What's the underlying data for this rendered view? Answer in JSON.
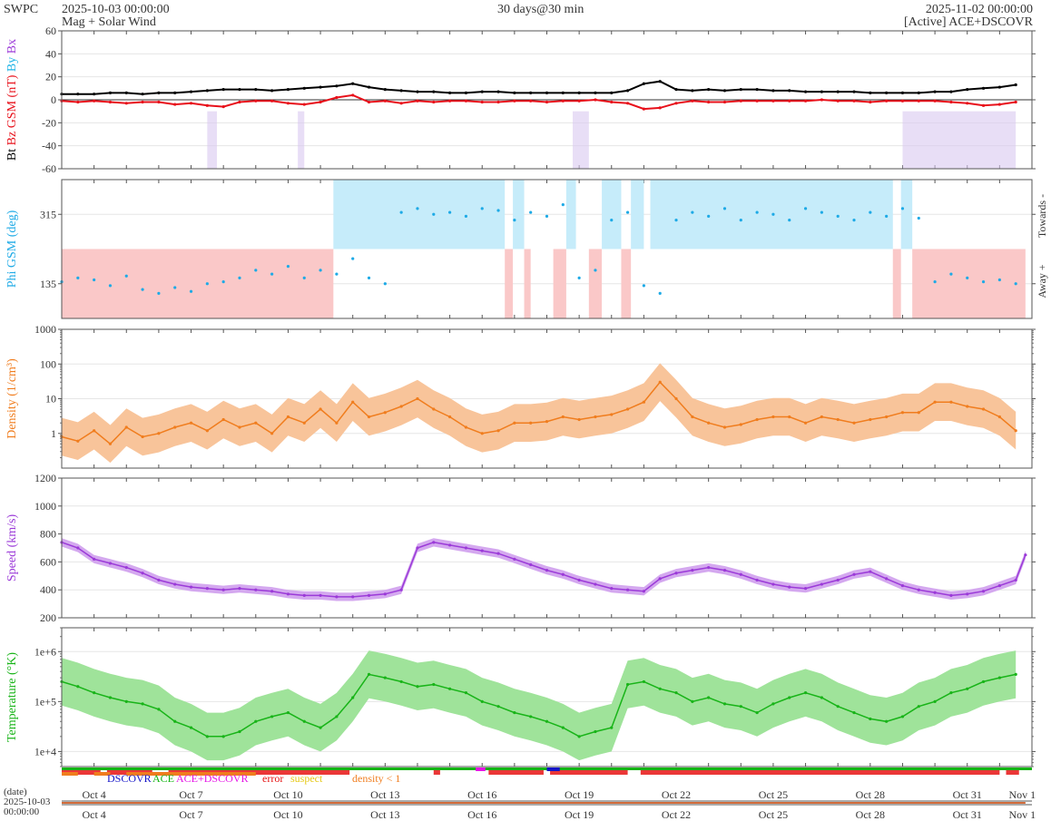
{
  "header": {
    "org": "SWPC",
    "start_time": "2025-10-03 00:00:00",
    "product": "Mag + Solar Wind",
    "span": "30 days@30 min",
    "end_time": "2025-11-02 00:00:00",
    "source": "[Active] ACE+DSCOVR"
  },
  "colors": {
    "bt": "#000000",
    "bz": "#e8101a",
    "by": "#1eb4e6",
    "phi": "#1eaae6",
    "phi_towards_band": "#c6ecfa",
    "phi_away_band": "#fac8c8",
    "density": "#f07d1e",
    "density_band": "#f8c49a",
    "speed": "#9b3ad8",
    "speed_band": "#d4a8ef",
    "temperature": "#18b418",
    "temperature_band": "#9fe39a",
    "dscovr": "#1414c8",
    "ace": "#14b414",
    "acedscovr": "#e614e6",
    "error": "#e61414",
    "suspect": "#e6c814",
    "density_flag": "#f07d1e"
  },
  "time_axis": {
    "ticks": [
      "Oct 4",
      "Oct 7",
      "Oct 10",
      "Oct 13",
      "Oct 16",
      "Oct 19",
      "Oct 22",
      "Oct 25",
      "Oct 28",
      "Oct 31",
      "Nov 1"
    ],
    "date_label": "(date)",
    "date_value_line1": "2025-10-03",
    "date_value_line2": "00:00:00"
  },
  "flags": {
    "legend": [
      {
        "key": "dscovr",
        "label": "DSCOVR"
      },
      {
        "key": "ace",
        "label": "ACE"
      },
      {
        "key": "acedscovr",
        "label": "ACE+DSCOVR"
      },
      {
        "key": "error",
        "label": "error"
      },
      {
        "key": "suspect",
        "label": "suspect"
      },
      {
        "key": "density_flag",
        "label": "density < 1"
      }
    ]
  },
  "chart_data": [
    {
      "type": "line",
      "name": "mag",
      "ylabel_parts": [
        {
          "text": "Bt",
          "color": "bt"
        },
        {
          "text": "Bz GSM (nT)",
          "color": "bz"
        },
        {
          "text": "By",
          "color": "by"
        },
        {
          "text": "Bx",
          "color": "speed"
        }
      ],
      "ylim": [
        -60,
        60
      ],
      "yticks": [
        60,
        40,
        20,
        0,
        -20,
        -40,
        -60
      ],
      "x_days": [
        0,
        0.5,
        1,
        1.5,
        2,
        2.5,
        3,
        3.5,
        4,
        4.5,
        5,
        5.5,
        6,
        6.5,
        7,
        7.5,
        8,
        8.5,
        9,
        9.5,
        10,
        10.5,
        11,
        11.5,
        12,
        12.5,
        13,
        13.5,
        14,
        14.5,
        15,
        15.5,
        16,
        16.5,
        17,
        17.5,
        18,
        18.5,
        19,
        19.5,
        20,
        20.5,
        21,
        21.5,
        22,
        22.5,
        23,
        23.5,
        24,
        24.5,
        25,
        25.5,
        26,
        26.5,
        27,
        27.5,
        28,
        28.5,
        29,
        29.5
      ],
      "series": [
        {
          "name": "Bt",
          "color": "bt",
          "values": [
            5,
            5,
            5,
            6,
            6,
            5,
            6,
            6,
            7,
            8,
            9,
            9,
            9,
            8,
            9,
            10,
            11,
            12,
            14,
            11,
            9,
            8,
            7,
            7,
            6,
            6,
            7,
            7,
            6,
            6,
            6,
            6,
            6,
            6,
            6,
            8,
            14,
            16,
            9,
            8,
            9,
            8,
            9,
            9,
            8,
            8,
            7,
            7,
            7,
            7,
            6,
            6,
            6,
            6,
            7,
            7,
            9,
            10,
            11,
            13
          ]
        },
        {
          "name": "Bz",
          "color": "bz",
          "values": [
            -1,
            -2,
            -1,
            -2,
            -3,
            -2,
            -2,
            -4,
            -3,
            -5,
            -6,
            -2,
            -1,
            -1,
            -3,
            -4,
            -2,
            2,
            4,
            -2,
            -1,
            -3,
            -1,
            -2,
            -1,
            -1,
            -2,
            -2,
            -1,
            -1,
            -2,
            -1,
            -1,
            0,
            -2,
            -3,
            -8,
            -7,
            -3,
            -1,
            -2,
            -2,
            -1,
            -1,
            -1,
            -1,
            -1,
            0,
            -1,
            -1,
            -2,
            -1,
            -1,
            -1,
            -1,
            -2,
            -3,
            -5,
            -4,
            -2
          ]
        }
      ],
      "bx_by_spans": [
        [
          4.5,
          4.8
        ],
        [
          7.3,
          7.5
        ],
        [
          15.8,
          16.3
        ],
        [
          26.0,
          29.5
        ]
      ]
    },
    {
      "type": "scatter",
      "name": "phi",
      "ylabel": "Phi GSM (deg)",
      "ylim": [
        45,
        405
      ],
      "yticks": [
        315,
        135
      ],
      "right_labels": [
        "Towards -",
        "Away +"
      ],
      "towards_band": [
        225,
        405
      ],
      "away_band": [
        45,
        225
      ],
      "x_days": [
        0,
        0.5,
        1,
        1.5,
        2,
        2.5,
        3,
        3.5,
        4,
        4.5,
        5,
        5.5,
        6,
        6.5,
        7,
        7.5,
        8,
        8.5,
        9,
        9.5,
        10,
        10.5,
        11,
        11.5,
        12,
        12.5,
        13,
        13.5,
        14,
        14.5,
        15,
        15.5,
        16,
        16.5,
        17,
        17.5,
        18,
        18.5,
        19,
        19.5,
        20,
        20.5,
        21,
        21.5,
        22,
        22.5,
        23,
        23.5,
        24,
        24.5,
        25,
        25.5,
        26,
        26.5,
        27,
        27.5,
        28,
        28.5,
        29,
        29.5
      ],
      "values": [
        140,
        150,
        145,
        130,
        155,
        120,
        110,
        125,
        115,
        135,
        140,
        150,
        170,
        160,
        180,
        150,
        170,
        160,
        200,
        150,
        135,
        320,
        330,
        315,
        320,
        310,
        330,
        325,
        300,
        320,
        310,
        340,
        150,
        170,
        300,
        320,
        130,
        110,
        300,
        320,
        310,
        330,
        300,
        320,
        315,
        300,
        330,
        320,
        310,
        300,
        320,
        310,
        330,
        305,
        140,
        160,
        150,
        140,
        145,
        135
      ],
      "towards_spans": [
        [
          8.4,
          13.7
        ],
        [
          13.95,
          14.3
        ],
        [
          15.6,
          15.9
        ],
        [
          16.7,
          17.3
        ],
        [
          17.6,
          18.0
        ],
        [
          18.2,
          25.7
        ],
        [
          25.95,
          26.3
        ]
      ],
      "away_spans": [
        [
          0,
          8.4
        ],
        [
          13.7,
          13.95
        ],
        [
          14.3,
          14.5
        ],
        [
          15.2,
          15.6
        ],
        [
          16.3,
          16.7
        ],
        [
          17.3,
          17.6
        ],
        [
          25.7,
          25.95
        ],
        [
          26.3,
          29.8
        ]
      ]
    },
    {
      "type": "area",
      "name": "density",
      "ylabel": "Density (1/cm³)",
      "yscale": "log",
      "ylim": [
        0.1,
        1000
      ],
      "yticks": [
        1000,
        100,
        10,
        1
      ],
      "x_days": [
        0,
        0.5,
        1,
        1.5,
        2,
        2.5,
        3,
        3.5,
        4,
        4.5,
        5,
        5.5,
        6,
        6.5,
        7,
        7.5,
        8,
        8.5,
        9,
        9.5,
        10,
        10.5,
        11,
        11.5,
        12,
        12.5,
        13,
        13.5,
        14,
        14.5,
        15,
        15.5,
        16,
        16.5,
        17,
        17.5,
        18,
        18.5,
        19,
        19.5,
        20,
        20.5,
        21,
        21.5,
        22,
        22.5,
        23,
        23.5,
        24,
        24.5,
        25,
        25.5,
        26,
        26.5,
        27,
        27.5,
        28,
        28.5,
        29,
        29.5
      ],
      "values": [
        0.8,
        0.6,
        1.2,
        0.5,
        1.5,
        0.8,
        1.0,
        1.5,
        2.0,
        1.2,
        2.5,
        1.5,
        2.0,
        1.0,
        3.0,
        2.0,
        5.0,
        2.0,
        8.0,
        3.0,
        4.0,
        6.0,
        10,
        5.0,
        3.0,
        1.5,
        1.0,
        1.2,
        2.0,
        2.0,
        2.2,
        3.0,
        2.5,
        3.0,
        3.5,
        5.0,
        8.0,
        30,
        10,
        3.0,
        2.0,
        1.5,
        1.8,
        2.5,
        3.0,
        3.0,
        2.0,
        3.0,
        2.5,
        2.0,
        2.5,
        3.0,
        4.0,
        4.0,
        8.0,
        8.0,
        6.0,
        5.0,
        3.0,
        1.2
      ],
      "band_factor": 3.5
    },
    {
      "type": "area",
      "name": "speed",
      "ylabel": "Speed (km/s)",
      "ylim": [
        200,
        1200
      ],
      "yticks": [
        1200,
        1000,
        800,
        600,
        400,
        200
      ],
      "x_days": [
        0,
        0.5,
        1,
        1.5,
        2,
        2.5,
        3,
        3.5,
        4,
        4.5,
        5,
        5.5,
        6,
        6.5,
        7,
        7.5,
        8,
        8.5,
        9,
        9.5,
        10,
        10.5,
        11,
        11.5,
        12,
        12.5,
        13,
        13.5,
        14,
        14.5,
        15,
        15.5,
        16,
        16.5,
        17,
        17.5,
        18,
        18.5,
        19,
        19.5,
        20,
        20.5,
        21,
        21.5,
        22,
        22.5,
        23,
        23.5,
        24,
        24.5,
        25,
        25.5,
        26,
        26.5,
        27,
        27.5,
        28,
        28.5,
        29,
        29.5
      ],
      "values": [
        740,
        700,
        620,
        590,
        560,
        520,
        470,
        440,
        420,
        410,
        400,
        410,
        400,
        390,
        370,
        360,
        360,
        350,
        350,
        360,
        370,
        400,
        700,
        740,
        720,
        700,
        680,
        660,
        620,
        580,
        540,
        510,
        470,
        440,
        410,
        400,
        390,
        480,
        520,
        540,
        560,
        540,
        510,
        470,
        440,
        420,
        410,
        440,
        470,
        510,
        530,
        480,
        430,
        400,
        380,
        360,
        370,
        390,
        430,
        470
      ],
      "extra_x_days": [
        29.8
      ],
      "extra_values": [
        650
      ],
      "band": 30
    },
    {
      "type": "area",
      "name": "temperature",
      "ylabel": "Temperature (°K)",
      "yscale": "log",
      "ylim": [
        5000,
        3000000
      ],
      "yticks": [
        1000000,
        100000,
        10000
      ],
      "ytick_labels": [
        "1e+6",
        "1e+5",
        "1e+4"
      ],
      "x_days": [
        0,
        0.5,
        1,
        1.5,
        2,
        2.5,
        3,
        3.5,
        4,
        4.5,
        5,
        5.5,
        6,
        6.5,
        7,
        7.5,
        8,
        8.5,
        9,
        9.5,
        10,
        10.5,
        11,
        11.5,
        12,
        12.5,
        13,
        13.5,
        14,
        14.5,
        15,
        15.5,
        16,
        16.5,
        17,
        17.5,
        18,
        18.5,
        19,
        19.5,
        20,
        20.5,
        21,
        21.5,
        22,
        22.5,
        23,
        23.5,
        24,
        24.5,
        25,
        25.5,
        26,
        26.5,
        27,
        27.5,
        28,
        28.5,
        29,
        29.5
      ],
      "values": [
        250000,
        200000,
        150000,
        120000,
        100000,
        90000,
        70000,
        40000,
        30000,
        20000,
        20000,
        25000,
        40000,
        50000,
        60000,
        40000,
        30000,
        50000,
        120000,
        350000,
        300000,
        250000,
        200000,
        220000,
        180000,
        150000,
        100000,
        80000,
        60000,
        50000,
        40000,
        30000,
        20000,
        25000,
        30000,
        220000,
        250000,
        180000,
        150000,
        100000,
        120000,
        90000,
        80000,
        60000,
        90000,
        120000,
        150000,
        120000,
        80000,
        60000,
        45000,
        40000,
        50000,
        80000,
        100000,
        150000,
        180000,
        250000,
        300000,
        350000
      ],
      "band_factor": 3.0
    }
  ]
}
